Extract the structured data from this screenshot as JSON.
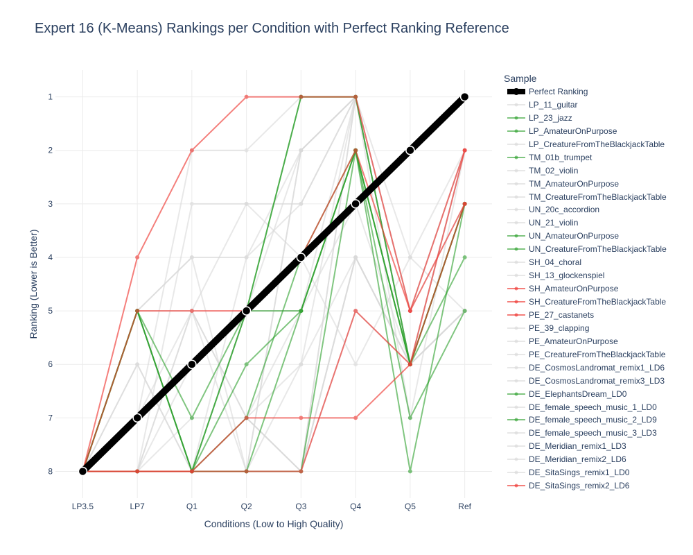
{
  "chart_data": {
    "type": "line",
    "title": "Expert 16 (K-Means) Rankings per Condition with Perfect Ranking Reference",
    "xlabel": "Conditions (Low to High Quality)",
    "ylabel": "Ranking (Lower is Better)",
    "categories": [
      "LP3.5",
      "LP7",
      "Q1",
      "Q2",
      "Q3",
      "Q4",
      "Q5",
      "Ref"
    ],
    "ylim": [
      8.5,
      0.5
    ],
    "y_reversed": true,
    "yticks": [
      1,
      2,
      3,
      4,
      5,
      6,
      7,
      8
    ],
    "grid": true,
    "legend_title": "Sample",
    "legend_position": "right",
    "colors": {
      "perfect": "#000000",
      "gray": "#d9d9d9",
      "green": "#2ca02c",
      "red": "#ef3b36",
      "text": "#2a3f5f",
      "grid": "#ebebeb"
    },
    "series": [
      {
        "name": "Perfect Ranking",
        "group": "perfect",
        "values": [
          8,
          7,
          6,
          5,
          4,
          3,
          2,
          1
        ]
      },
      {
        "name": "LP_11_guitar",
        "group": "gray",
        "values": [
          8,
          5,
          4,
          4,
          2,
          1,
          5,
          2
        ]
      },
      {
        "name": "LP_23_jazz",
        "group": "green",
        "values": [
          8,
          5,
          8,
          5,
          1,
          1,
          6,
          3
        ]
      },
      {
        "name": "LP_AmateurOnPurpose",
        "group": "green",
        "values": [
          8,
          5,
          7,
          5,
          5,
          2,
          6,
          4
        ]
      },
      {
        "name": "LP_CreatureFromTheBlackjackTable",
        "group": "gray",
        "values": [
          8,
          5,
          5,
          7,
          8,
          1,
          6,
          5
        ]
      },
      {
        "name": "TM_01b_trumpet",
        "group": "green",
        "values": [
          8,
          8,
          8,
          8,
          5,
          2,
          7,
          5
        ]
      },
      {
        "name": "TM_02_violin",
        "group": "gray",
        "values": [
          8,
          6,
          8,
          4,
          3,
          1,
          7,
          2
        ]
      },
      {
        "name": "TM_AmateurOnPurpose",
        "group": "gray",
        "values": [
          8,
          7,
          5,
          3,
          3,
          1,
          5,
          2
        ]
      },
      {
        "name": "TM_CreatureFromTheBlackjackTable",
        "group": "gray",
        "values": [
          8,
          5,
          8,
          7,
          6,
          4,
          6,
          5
        ]
      },
      {
        "name": "UN_20c_accordion",
        "group": "gray",
        "values": [
          8,
          5,
          4,
          8,
          2,
          1,
          6,
          2
        ]
      },
      {
        "name": "UN_21_violin",
        "group": "gray",
        "values": [
          8,
          8,
          3,
          3,
          4,
          6,
          4,
          2
        ]
      },
      {
        "name": "UN_AmateurOnPurpose",
        "group": "green",
        "values": [
          8,
          5,
          8,
          6,
          5,
          2,
          6,
          3
        ]
      },
      {
        "name": "UN_CreatureFromTheBlackjackTable",
        "group": "green",
        "values": [
          8,
          8,
          8,
          8,
          8,
          2,
          8,
          3
        ]
      },
      {
        "name": "SH_04_choral",
        "group": "gray",
        "values": [
          8,
          7,
          2,
          2,
          1,
          1,
          6,
          2
        ]
      },
      {
        "name": "SH_13_glockenspiel",
        "group": "gray",
        "values": [
          8,
          8,
          6,
          5,
          2,
          1,
          5,
          3
        ]
      },
      {
        "name": "SH_AmateurOnPurpose",
        "group": "red",
        "values": [
          8,
          5,
          5,
          5,
          4,
          2,
          5,
          2
        ]
      },
      {
        "name": "SH_CreatureFromTheBlackjackTable",
        "group": "red",
        "values": [
          8,
          8,
          8,
          7,
          7,
          7,
          6,
          2
        ]
      },
      {
        "name": "PE_27_castanets",
        "group": "red",
        "values": [
          8,
          8,
          8,
          8,
          8,
          5,
          6,
          3
        ]
      },
      {
        "name": "PE_39_clapping",
        "group": "gray",
        "values": [
          8,
          8,
          7,
          7,
          8,
          4,
          6,
          5
        ]
      },
      {
        "name": "PE_AmateurOnPurpose",
        "group": "gray",
        "values": [
          8,
          8,
          8,
          7,
          5,
          1,
          6,
          5
        ]
      },
      {
        "name": "PE_CreatureFromTheBlackjackTable",
        "group": "gray",
        "values": [
          8,
          8,
          8,
          8,
          2,
          1,
          6,
          2
        ]
      },
      {
        "name": "DE_CosmosLandromat_remix1_LD6",
        "group": "gray",
        "values": [
          8,
          5,
          8,
          5,
          5,
          3,
          6,
          2
        ]
      },
      {
        "name": "DE_CosmosLandromat_remix3_LD3",
        "group": "gray",
        "values": [
          8,
          8,
          5,
          7,
          8,
          1,
          5,
          2
        ]
      },
      {
        "name": "DE_ElephantsDream_LD0",
        "group": "green",
        "values": [
          8,
          5,
          8,
          5,
          1,
          1,
          6,
          3
        ]
      },
      {
        "name": "DE_female_speech_music_1_LD0",
        "group": "gray",
        "values": [
          8,
          8,
          8,
          8,
          8,
          5,
          6,
          5
        ]
      },
      {
        "name": "DE_female_speech_music_2_LD9",
        "group": "green",
        "values": [
          8,
          8,
          8,
          7,
          4,
          2,
          6,
          3
        ]
      },
      {
        "name": "DE_female_speech_music_3_LD3",
        "group": "gray",
        "values": [
          8,
          8,
          8,
          8,
          8,
          4,
          6,
          2
        ]
      },
      {
        "name": "DE_Meridian_remix1_LD3",
        "group": "gray",
        "values": [
          8,
          8,
          5,
          8,
          6,
          1,
          4,
          5
        ]
      },
      {
        "name": "DE_Meridian_remix2_LD6",
        "group": "gray",
        "values": [
          8,
          6,
          8,
          8,
          8,
          5,
          6,
          2
        ]
      },
      {
        "name": "DE_SitaSings_remix1_LD0",
        "group": "gray",
        "values": [
          8,
          8,
          8,
          8,
          8,
          4,
          6,
          2
        ]
      },
      {
        "name": "DE_SitaSings_remix2_LD6",
        "group": "red",
        "values": [
          8,
          4,
          2,
          1,
          1,
          1,
          5,
          3
        ]
      }
    ]
  }
}
